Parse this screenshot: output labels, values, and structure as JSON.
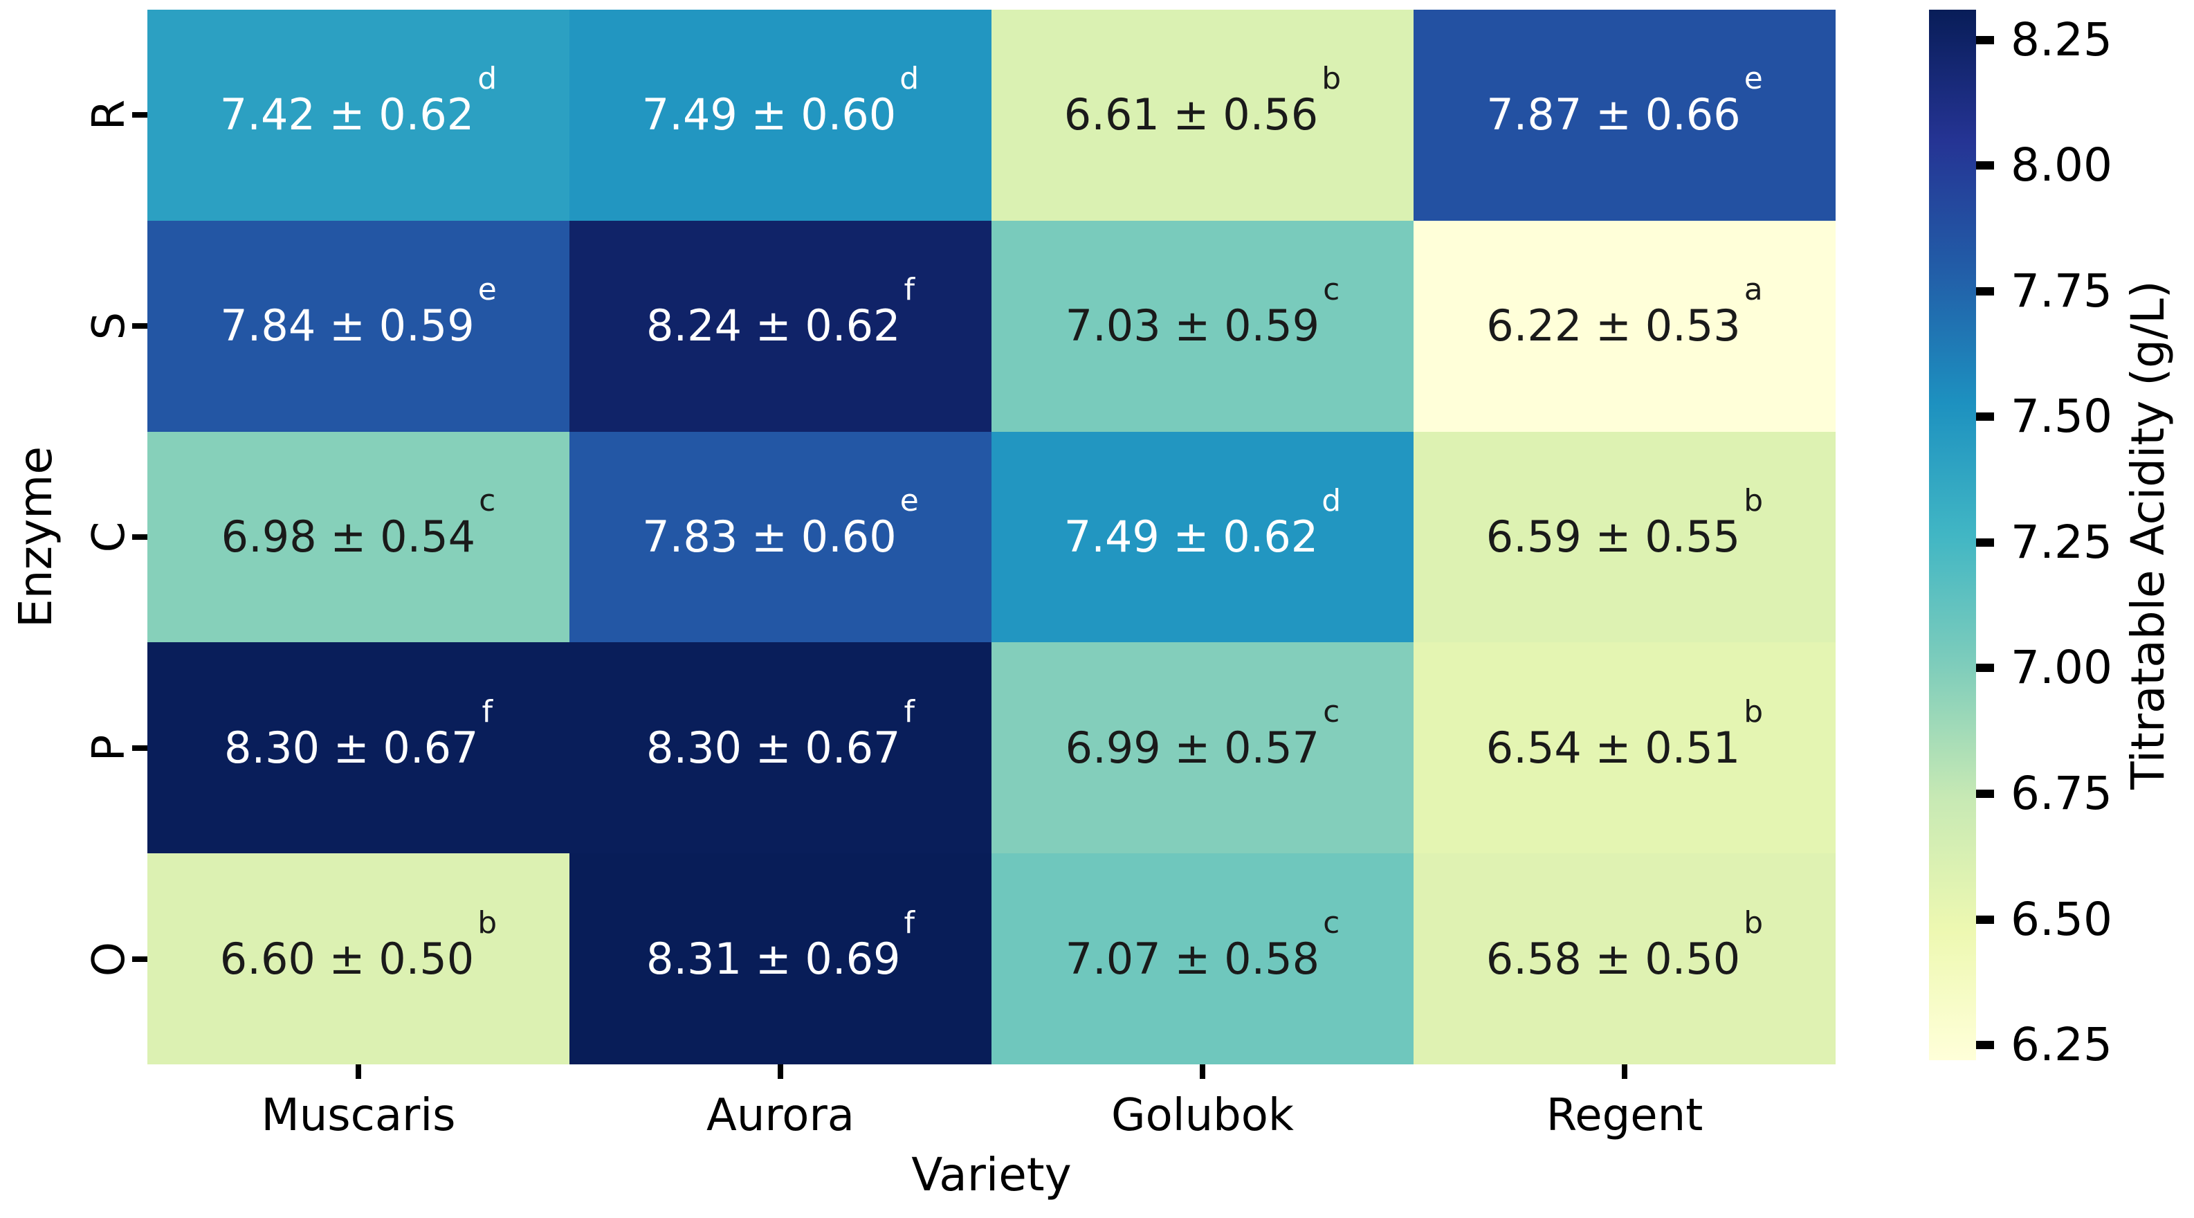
{
  "figure": {
    "xlabel": "Variety",
    "ylabel": "Enzyme",
    "colorbar_label": "Titratable Acidity (g/L)"
  },
  "colors": {
    "background": "#ffffff",
    "tick_color": "#000000",
    "label_color": "#000000",
    "cell_text_light": "#ffffff",
    "cell_text_dark": "#1a1a1a"
  },
  "chart_data": {
    "type": "heatmap",
    "title": "",
    "xlabel": "Variety",
    "ylabel": "Enzyme",
    "colorbar_label": "Titratable Acidity (g/L)",
    "x_categories": [
      "Muscaris",
      "Aurora",
      "Golubok",
      "Regent"
    ],
    "y_categories": [
      "R",
      "S",
      "C",
      "P",
      "O"
    ],
    "values": [
      [
        7.42,
        7.49,
        6.61,
        7.87
      ],
      [
        7.84,
        8.24,
        7.03,
        6.22
      ],
      [
        6.98,
        7.83,
        7.49,
        6.59
      ],
      [
        8.3,
        8.3,
        6.99,
        6.54
      ],
      [
        6.6,
        8.31,
        7.07,
        6.58
      ]
    ],
    "std": [
      [
        0.62,
        0.6,
        0.56,
        0.66
      ],
      [
        0.59,
        0.62,
        0.59,
        0.53
      ],
      [
        0.54,
        0.6,
        0.62,
        0.55
      ],
      [
        0.67,
        0.67,
        0.57,
        0.51
      ],
      [
        0.5,
        0.69,
        0.58,
        0.5
      ]
    ],
    "letters": [
      [
        "d",
        "d",
        "b",
        "e"
      ],
      [
        "e",
        "f",
        "c",
        "a"
      ],
      [
        "c",
        "e",
        "d",
        "b"
      ],
      [
        "f",
        "f",
        "c",
        "b"
      ],
      [
        "b",
        "f",
        "c",
        "b"
      ]
    ],
    "plus_minus": "±",
    "cell_colors": [
      [
        "#2ca0c2",
        "#2296c1",
        "#daf1b2",
        "#2351a2"
      ],
      [
        "#2356a4",
        "#102368",
        "#79cbbc",
        "#ffffd9"
      ],
      [
        "#86d0ba",
        "#2357a5",
        "#2296c1",
        "#ddf2b2"
      ],
      [
        "#091e5a",
        "#091e5a",
        "#83cebb",
        "#e4f5b2"
      ],
      [
        "#dcf1b2",
        "#081d58",
        "#6fc7bd",
        "#dff2b2"
      ]
    ],
    "white_text_min_value": 7.4,
    "vmin": 6.22,
    "vmax": 8.31,
    "colormap": {
      "name": "YlGnBu",
      "stops": [
        "#ffffd9",
        "#edf8b1",
        "#c7e9b4",
        "#7fcdbb",
        "#41b6c4",
        "#1d91c0",
        "#225ea8",
        "#253494",
        "#081d58"
      ]
    },
    "colorbar_ticks": [
      {
        "value": 8.25,
        "label": "8.25"
      },
      {
        "value": 8.0,
        "label": "8.00"
      },
      {
        "value": 7.75,
        "label": "7.75"
      },
      {
        "value": 7.5,
        "label": "7.50"
      },
      {
        "value": 7.25,
        "label": "7.25"
      },
      {
        "value": 7.0,
        "label": "7.00"
      },
      {
        "value": 6.75,
        "label": "6.75"
      },
      {
        "value": 6.5,
        "label": "6.50"
      },
      {
        "value": 6.25,
        "label": "6.25"
      }
    ],
    "legend_position": "right-colorbar",
    "grid": false
  }
}
